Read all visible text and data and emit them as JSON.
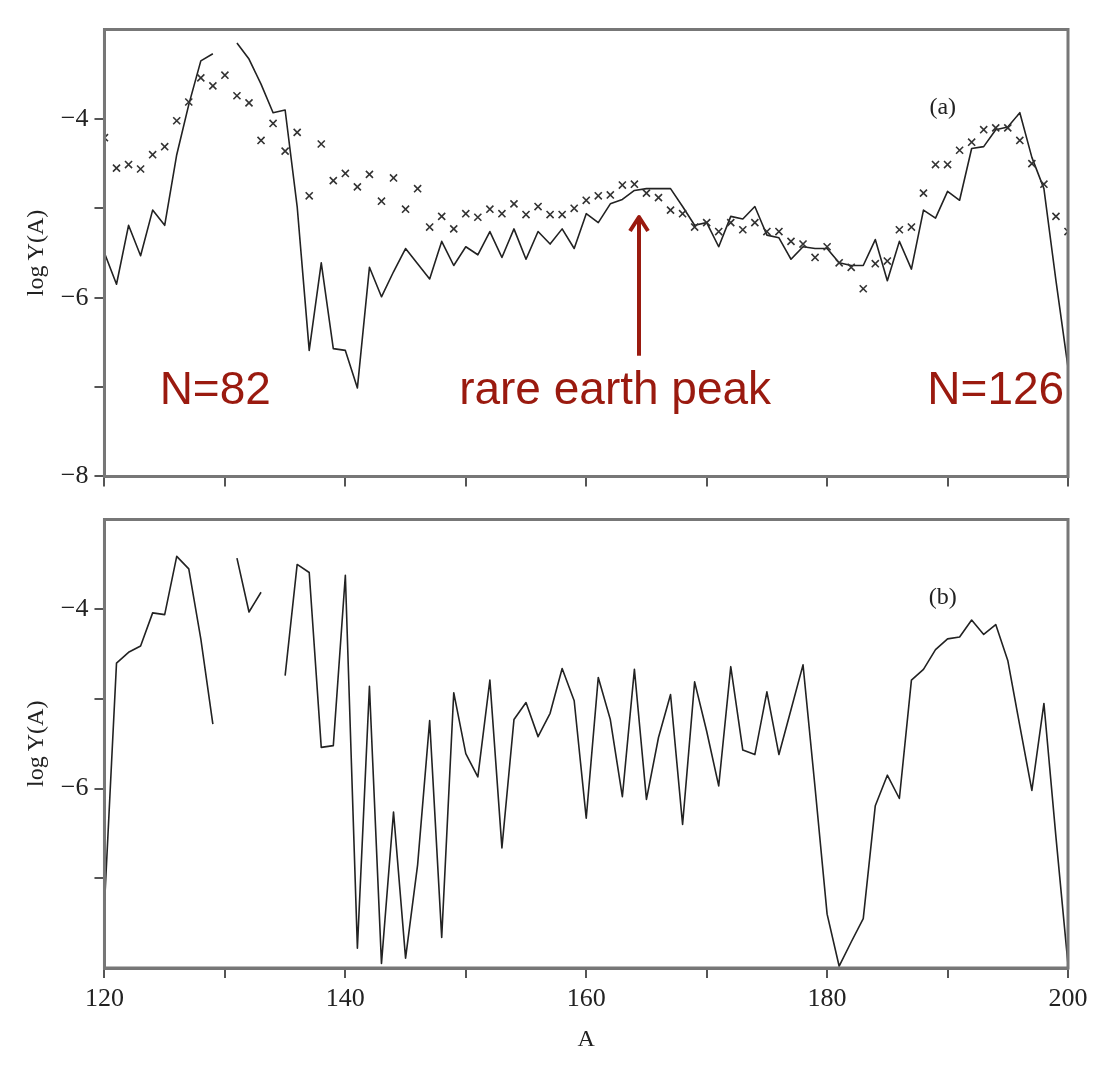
{
  "chart_data": [
    {
      "type": "line",
      "ylabel": "log Y(A)",
      "xlim": [
        120,
        200
      ],
      "ylim": [
        -8,
        -3
      ],
      "xticks": [
        {
          "value": 120,
          "label": null
        },
        {
          "value": 130,
          "label": null
        },
        {
          "value": 140,
          "label": null
        },
        {
          "value": 150,
          "label": null
        },
        {
          "value": 160,
          "label": null
        },
        {
          "value": 170,
          "label": null
        },
        {
          "value": 180,
          "label": null
        },
        {
          "value": 190,
          "label": null
        },
        {
          "value": 200,
          "label": null
        }
      ],
      "yticks": [
        {
          "value": -4,
          "label": "−4"
        },
        {
          "value": -5,
          "label": null
        },
        {
          "value": -6,
          "label": "−6"
        },
        {
          "value": -7,
          "label": null
        },
        {
          "value": -8,
          "label": "−8"
        }
      ],
      "tick_labels": "y",
      "grid": false,
      "legend": false,
      "x": [
        120,
        121,
        122,
        123,
        124,
        125,
        126,
        127,
        128,
        129,
        130,
        131,
        132,
        133,
        134,
        135,
        136,
        137,
        138,
        139,
        140,
        141,
        142,
        143,
        144,
        145,
        146,
        147,
        148,
        149,
        150,
        151,
        152,
        153,
        154,
        155,
        156,
        157,
        158,
        159,
        160,
        161,
        162,
        163,
        164,
        165,
        166,
        167,
        168,
        169,
        170,
        171,
        172,
        173,
        174,
        175,
        176,
        177,
        178,
        179,
        180,
        181,
        182,
        183,
        184,
        185,
        186,
        187,
        188,
        189,
        190,
        191,
        192,
        193,
        194,
        195,
        196,
        197,
        198,
        199,
        200
      ],
      "series": [
        {
          "type": "scatter",
          "marker": "cross",
          "color": "#333333",
          "values": [
            -4.21,
            -4.55,
            -4.51,
            -4.56,
            -4.4,
            -4.31,
            -4.02,
            -3.81,
            -3.54,
            -3.63,
            -3.51,
            -3.74,
            -3.82,
            -4.24,
            -4.05,
            -4.36,
            -4.15,
            -4.86,
            -4.28,
            -4.69,
            -4.61,
            -4.76,
            -4.62,
            -4.92,
            -4.66,
            -5.01,
            -4.78,
            -5.21,
            -5.09,
            -5.23,
            -5.06,
            -5.1,
            -5.01,
            -5.06,
            -4.95,
            -5.07,
            -4.98,
            -5.07,
            -5.07,
            -5.0,
            -4.91,
            -4.86,
            -4.85,
            -4.74,
            -4.73,
            -4.83,
            -4.88,
            -5.02,
            -5.06,
            -5.21,
            -5.16,
            -5.26,
            -5.16,
            -5.24,
            -5.16,
            -5.26,
            -5.26,
            -5.37,
            -5.4,
            -5.55,
            -5.43,
            -5.61,
            -5.66,
            -5.9,
            -5.62,
            -5.59,
            -5.24,
            -5.21,
            -4.83,
            -4.51,
            -4.51,
            -4.35,
            -4.26,
            -4.12,
            -4.1,
            -4.1,
            -4.24,
            -4.5,
            -4.73,
            -5.09,
            -5.26
          ]
        },
        {
          "type": "line",
          "marker": "none",
          "color": "#222222",
          "values": [
            -5.5,
            -5.85,
            -5.19,
            -5.53,
            -5.02,
            -5.19,
            -4.4,
            -3.84,
            -3.35,
            -3.27,
            null,
            -3.15,
            -3.33,
            -3.61,
            -3.93,
            -3.9,
            -4.98,
            -6.59,
            -5.61,
            -6.57,
            -6.59,
            -7.01,
            -5.66,
            -5.99,
            -5.71,
            -5.45,
            -5.62,
            -5.79,
            -5.37,
            -5.64,
            -5.43,
            -5.52,
            -5.26,
            -5.55,
            -5.23,
            -5.57,
            -5.26,
            -5.4,
            -5.23,
            -5.45,
            -5.06,
            -5.16,
            -4.95,
            -4.9,
            -4.8,
            -4.78,
            -4.78,
            -4.78,
            -4.98,
            -5.19,
            -5.16,
            -5.43,
            -5.09,
            -5.12,
            -4.98,
            -5.3,
            -5.33,
            -5.57,
            -5.43,
            -5.45,
            -5.45,
            -5.61,
            -5.64,
            -5.64,
            -5.35,
            -5.81,
            -5.37,
            -5.68,
            -5.02,
            -5.11,
            -4.81,
            -4.91,
            -4.33,
            -4.31,
            -4.12,
            -4.09,
            -3.93,
            -4.43,
            -4.78,
            -5.81,
            -6.78
          ]
        }
      ],
      "annotations": [
        "(a)",
        "N=82",
        "rare earth peak",
        "N=126"
      ]
    },
    {
      "type": "line",
      "xlabel": "A",
      "ylabel": "log Y(A)",
      "xlim": [
        120,
        200
      ],
      "ylim": [
        -8,
        -3
      ],
      "xticks": [
        120,
        {
          "value": 130,
          "label": null
        },
        140,
        {
          "value": 150,
          "label": null
        },
        160,
        {
          "value": 170,
          "label": null
        },
        180,
        {
          "value": 190,
          "label": null
        },
        200
      ],
      "yticks": [
        {
          "value": -4,
          "label": "−4"
        },
        {
          "value": -5,
          "label": null
        },
        {
          "value": -6,
          "label": "−6"
        },
        {
          "value": -7,
          "label": null
        }
      ],
      "grid": false,
      "legend": false,
      "x": [
        120,
        121,
        122,
        123,
        124,
        125,
        126,
        127,
        128,
        129,
        130,
        131,
        132,
        133,
        134,
        135,
        136,
        137,
        138,
        139,
        140,
        141,
        142,
        143,
        144,
        145,
        146,
        147,
        148,
        149,
        150,
        151,
        152,
        153,
        154,
        155,
        156,
        157,
        158,
        159,
        160,
        161,
        162,
        163,
        164,
        165,
        166,
        167,
        168,
        169,
        170,
        171,
        172,
        173,
        174,
        175,
        176,
        177,
        178,
        179,
        180,
        181,
        182,
        183,
        184,
        185,
        186,
        187,
        188,
        189,
        190,
        191,
        192,
        193,
        194,
        195,
        196,
        197,
        198,
        199,
        200
      ],
      "series": [
        {
          "type": "line",
          "marker": "none",
          "color": "#222222",
          "values": [
            -7.3,
            -4.6,
            -4.48,
            -4.41,
            -4.04,
            -4.06,
            -3.41,
            -3.55,
            -4.33,
            -5.28,
            null,
            -3.43,
            -4.03,
            -3.81,
            null,
            -4.74,
            -3.5,
            -3.59,
            -5.54,
            -5.52,
            -3.62,
            -7.78,
            -4.86,
            -7.95,
            -6.26,
            -7.89,
            -6.85,
            -5.24,
            -7.66,
            -4.93,
            -5.61,
            -5.87,
            -4.79,
            -6.66,
            -5.23,
            -5.04,
            -5.42,
            -5.16,
            -4.66,
            -5.02,
            -6.33,
            -4.76,
            -5.23,
            -6.09,
            -4.67,
            -6.12,
            -5.43,
            -4.95,
            -6.4,
            -4.81,
            -5.36,
            -5.97,
            -4.64,
            -5.57,
            -5.62,
            -4.92,
            -5.62,
            -5.12,
            -4.62,
            -5.99,
            -7.4,
            -7.98,
            -7.71,
            -7.45,
            -6.19,
            -5.85,
            -6.11,
            -4.79,
            -4.67,
            -4.45,
            -4.33,
            -4.31,
            -4.12,
            -4.28,
            -4.17,
            -4.57,
            -5.3,
            -6.02,
            -5.05,
            -6.54,
            -7.96
          ]
        }
      ],
      "annotations": [
        "(b)"
      ]
    }
  ]
}
